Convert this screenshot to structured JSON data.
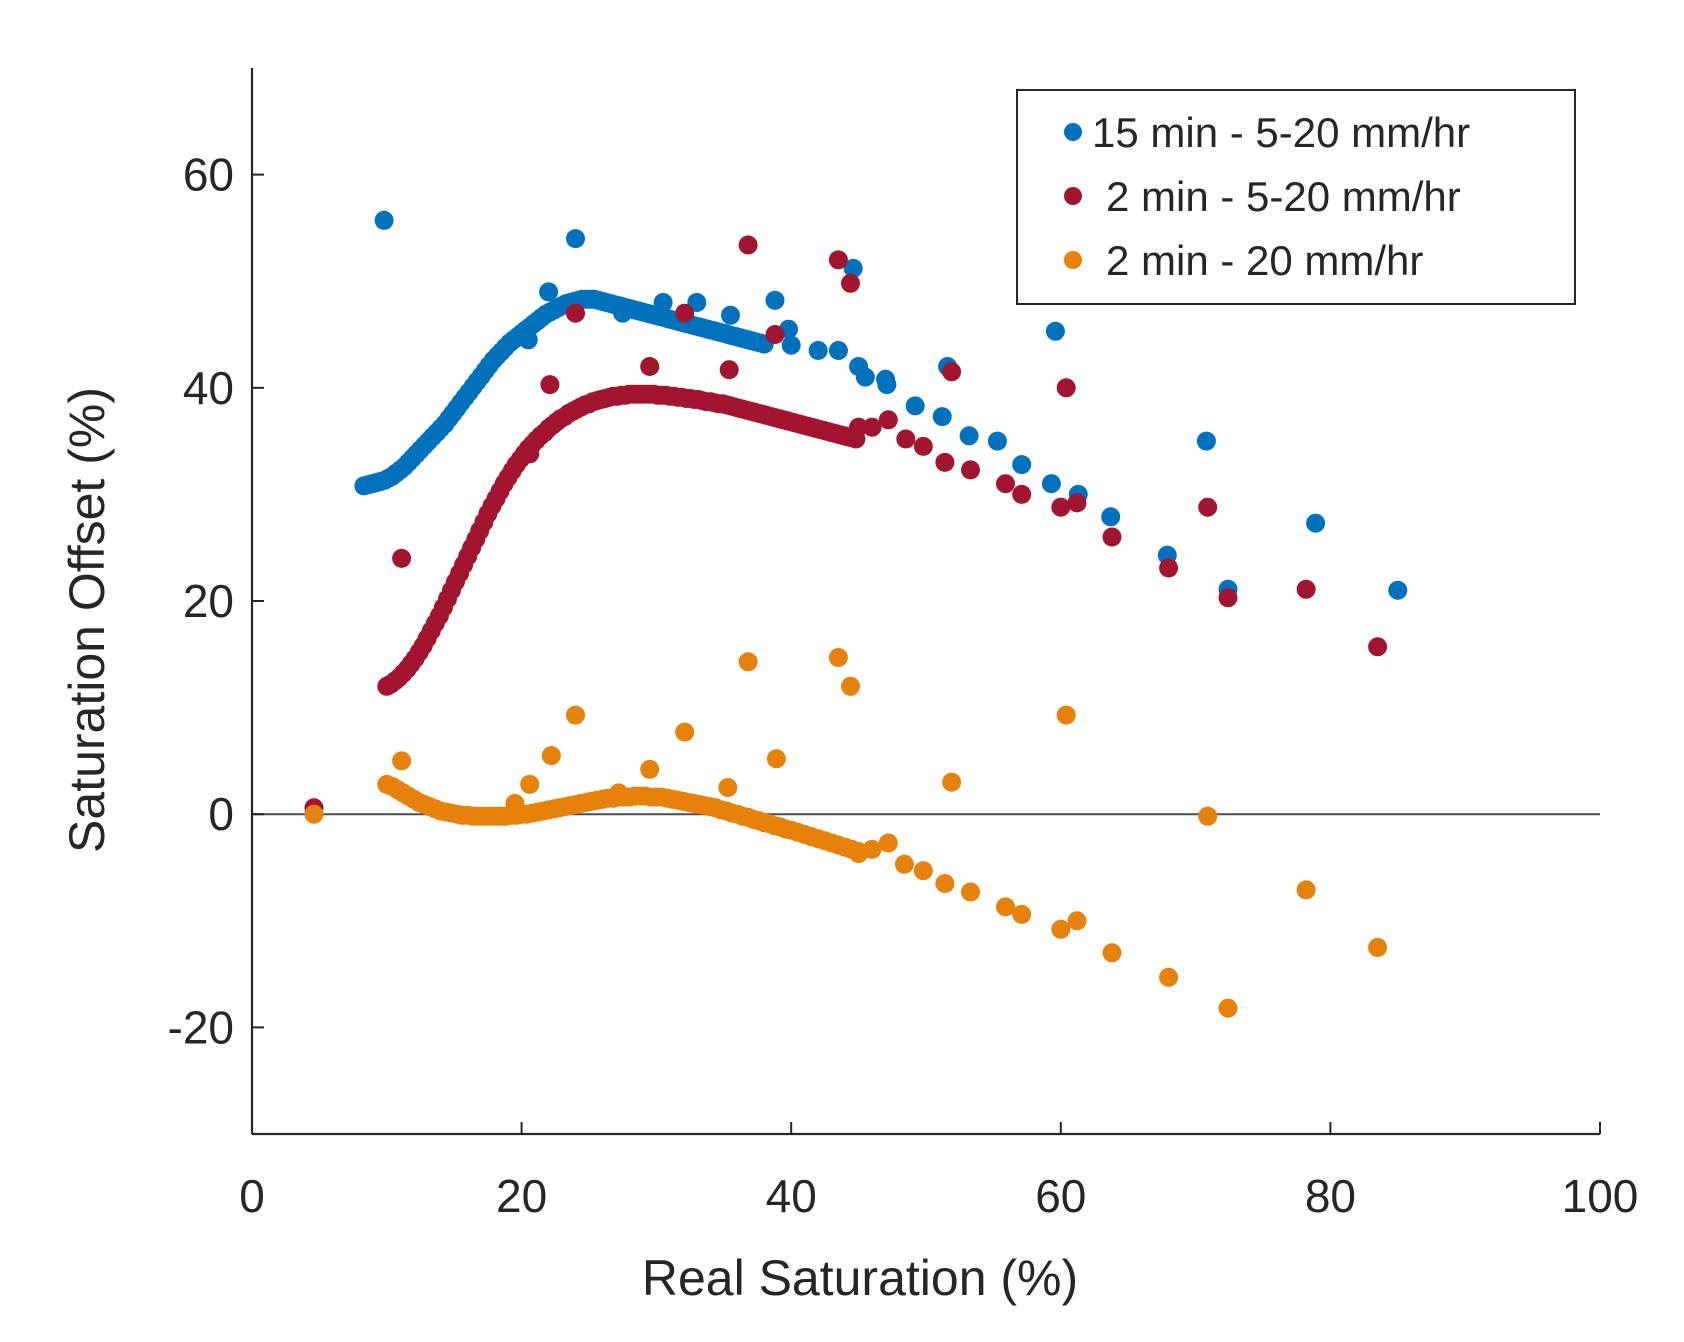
{
  "chart_data": {
    "type": "scatter",
    "title": "",
    "xlabel": "Real Saturation (%)",
    "ylabel": "Saturation Offset (%)",
    "xlim": [
      0,
      100
    ],
    "ylim": [
      -30,
      70
    ],
    "xticks": [
      "0",
      "20",
      "40",
      "60",
      "80",
      "100"
    ],
    "yticks": [
      "-20",
      "0",
      "20",
      "40",
      "60"
    ],
    "xtick_values": [
      0,
      20,
      40,
      60,
      80,
      100
    ],
    "ytick_values": [
      -20,
      0,
      20,
      40,
      60
    ],
    "reference_line_y": 0,
    "grid": false,
    "legend_position": "top-right",
    "series": [
      {
        "name": "15 min - 5-20 mm/hr",
        "color": "#0072BD",
        "x": [
          8.3,
          8.6,
          8.9,
          9.2,
          9.5,
          9.8,
          10.1,
          10.4,
          10.7,
          11.0,
          11.3,
          11.6,
          11.9,
          12.2,
          12.5,
          12.8,
          13.1,
          13.4,
          13.7,
          14.0,
          14.3,
          14.6,
          14.9,
          15.2,
          15.5,
          15.8,
          16.1,
          16.4,
          16.7,
          17.0,
          17.3,
          17.6,
          17.9,
          18.2,
          18.5,
          18.8,
          19.1,
          19.4,
          19.7,
          20.0,
          20.3,
          20.6,
          20.9,
          21.2,
          21.5,
          21.8,
          22.1,
          22.4,
          22.7,
          23.0,
          23.3,
          23.6,
          23.9,
          24.2,
          24.5,
          24.8,
          25.1,
          25.4,
          25.7,
          26.0,
          26.3,
          26.6,
          26.9,
          27.2,
          27.5,
          27.8,
          28.1,
          28.4,
          28.7,
          29.0,
          29.3,
          29.6,
          29.9,
          30.2,
          30.5,
          30.8,
          31.1,
          31.4,
          31.7,
          32.0,
          32.3,
          32.6,
          32.9,
          33.2,
          33.5,
          33.8,
          34.1,
          34.4,
          34.7,
          35.0,
          35.3,
          35.6,
          35.9,
          36.2,
          36.5,
          36.8,
          37.1,
          37.4,
          37.7,
          38.0,
          9.8,
          24.0,
          22.0,
          20.5,
          27.5,
          30.5,
          33.0,
          35.5,
          38.8,
          39.8,
          40.0,
          42.0,
          43.5,
          44.6,
          45.0,
          45.5,
          47.0,
          47.1,
          49.2,
          51.2,
          51.6,
          53.2,
          55.3,
          57.1,
          59.3,
          59.6,
          61.3,
          63.7,
          67.9,
          70.8,
          72.4,
          78.9,
          85.0
        ],
        "y": [
          30.8,
          30.9,
          31.0,
          31.1,
          31.2,
          31.3,
          31.5,
          31.7,
          32.0,
          32.3,
          32.6,
          33.0,
          33.4,
          33.8,
          34.2,
          34.6,
          35.0,
          35.4,
          35.8,
          36.2,
          36.6,
          37.1,
          37.6,
          38.1,
          38.6,
          39.1,
          39.6,
          40.1,
          40.6,
          41.1,
          41.6,
          42.1,
          42.6,
          43.0,
          43.4,
          43.8,
          44.2,
          44.5,
          44.8,
          45.1,
          45.4,
          45.7,
          46.0,
          46.3,
          46.6,
          46.9,
          47.1,
          47.3,
          47.5,
          47.7,
          47.9,
          48.0,
          48.1,
          48.2,
          48.3,
          48.3,
          48.3,
          48.3,
          48.2,
          48.1,
          48.0,
          47.9,
          47.8,
          47.7,
          47.6,
          47.5,
          47.4,
          47.3,
          47.2,
          47.1,
          47.0,
          46.9,
          46.8,
          46.7,
          46.6,
          46.5,
          46.4,
          46.3,
          46.2,
          46.1,
          46.0,
          45.9,
          45.8,
          45.7,
          45.6,
          45.5,
          45.4,
          45.3,
          45.2,
          45.1,
          45.0,
          44.9,
          44.8,
          44.7,
          44.6,
          44.5,
          44.4,
          44.3,
          44.2,
          44.1,
          55.7,
          54.0,
          49.0,
          44.5,
          47.0,
          48.0,
          48.0,
          46.8,
          48.2,
          45.5,
          44.0,
          43.5,
          43.5,
          51.2,
          42.0,
          41.0,
          40.8,
          40.3,
          38.3,
          37.3,
          42.0,
          35.5,
          35.0,
          32.8,
          31.0,
          45.3,
          30.0,
          27.9,
          24.3,
          35.0,
          21.1,
          27.3,
          21.0
        ]
      },
      {
        "name": "2 min - 5-20 mm/hr",
        "color": "#A2142F",
        "x": [
          10.0,
          10.3,
          10.6,
          10.9,
          11.2,
          11.5,
          11.8,
          12.1,
          12.4,
          12.7,
          13.0,
          13.3,
          13.6,
          13.9,
          14.2,
          14.5,
          14.8,
          15.1,
          15.4,
          15.7,
          16.0,
          16.3,
          16.6,
          16.9,
          17.2,
          17.5,
          17.8,
          18.1,
          18.4,
          18.7,
          19.0,
          19.3,
          19.6,
          19.9,
          20.2,
          20.5,
          20.8,
          21.1,
          21.4,
          21.7,
          22.0,
          22.3,
          22.6,
          22.9,
          23.2,
          23.5,
          23.8,
          24.1,
          24.4,
          24.7,
          25.0,
          25.3,
          25.6,
          25.9,
          26.2,
          26.5,
          26.8,
          27.1,
          27.4,
          27.7,
          28.0,
          28.3,
          28.6,
          28.9,
          29.2,
          29.5,
          29.8,
          30.1,
          30.4,
          30.7,
          31.0,
          31.3,
          31.6,
          31.9,
          32.2,
          32.5,
          32.8,
          33.1,
          33.4,
          33.7,
          34.0,
          34.3,
          34.6,
          34.9,
          35.2,
          35.5,
          35.8,
          36.1,
          36.4,
          36.7,
          37.0,
          37.3,
          37.6,
          37.9,
          38.2,
          38.5,
          38.8,
          39.1,
          39.4,
          39.7,
          40.0,
          40.3,
          40.6,
          40.9,
          41.2,
          41.5,
          41.8,
          42.1,
          42.4,
          42.7,
          43.0,
          43.3,
          43.6,
          43.9,
          44.2,
          44.5,
          44.8,
          4.6,
          11.1,
          20.6,
          22.1,
          24.0,
          29.5,
          32.1,
          35.4,
          36.8,
          38.8,
          43.5,
          44.4,
          45.0,
          46.0,
          47.2,
          48.5,
          49.8,
          51.4,
          51.9,
          53.3,
          55.9,
          57.1,
          60.0,
          60.4,
          61.2,
          63.8,
          68.0,
          70.9,
          72.4,
          78.2,
          83.5
        ],
        "y": [
          12.0,
          12.2,
          12.5,
          12.8,
          13.2,
          13.6,
          14.1,
          14.6,
          15.2,
          15.8,
          16.5,
          17.2,
          17.9,
          18.6,
          19.4,
          20.2,
          21.0,
          21.8,
          22.6,
          23.4,
          24.2,
          25.0,
          25.8,
          26.6,
          27.4,
          28.2,
          28.9,
          29.6,
          30.3,
          31.0,
          31.6,
          32.2,
          32.8,
          33.3,
          33.8,
          34.3,
          34.7,
          35.1,
          35.5,
          35.8,
          36.2,
          36.5,
          36.8,
          37.1,
          37.3,
          37.6,
          37.8,
          38.0,
          38.2,
          38.4,
          38.5,
          38.7,
          38.8,
          38.9,
          39.0,
          39.1,
          39.2,
          39.2,
          39.3,
          39.3,
          39.4,
          39.4,
          39.4,
          39.4,
          39.4,
          39.4,
          39.4,
          39.3,
          39.3,
          39.3,
          39.2,
          39.2,
          39.1,
          39.1,
          39.0,
          39.0,
          38.9,
          38.9,
          38.8,
          38.7,
          38.7,
          38.6,
          38.5,
          38.5,
          38.4,
          38.3,
          38.2,
          38.1,
          38.0,
          37.9,
          37.8,
          37.7,
          37.6,
          37.5,
          37.4,
          37.3,
          37.2,
          37.1,
          37.0,
          36.9,
          36.8,
          36.7,
          36.6,
          36.5,
          36.4,
          36.3,
          36.2,
          36.1,
          36.0,
          35.9,
          35.8,
          35.7,
          35.6,
          35.5,
          35.4,
          35.3,
          35.2,
          0.6,
          24.0,
          33.8,
          40.3,
          47.0,
          42.0,
          47.0,
          41.7,
          53.4,
          45.0,
          52.0,
          49.8,
          36.3,
          36.3,
          37.0,
          35.2,
          34.5,
          33.0,
          41.5,
          32.3,
          31.0,
          30.0,
          28.8,
          40.0,
          29.2,
          26.0,
          23.1,
          28.8,
          20.3,
          21.1,
          15.7
        ]
      },
      {
        "name": "2 min - 20 mm/hr",
        "color": "#D95319",
        "display_color": "#E6810A",
        "x": [
          10.0,
          10.4,
          10.8,
          11.2,
          11.6,
          12.0,
          12.4,
          12.8,
          13.2,
          13.6,
          14.0,
          14.4,
          14.8,
          15.2,
          15.6,
          16.0,
          16.4,
          16.8,
          17.2,
          17.6,
          18.0,
          18.4,
          18.8,
          19.2,
          19.6,
          20.0,
          20.4,
          20.8,
          21.2,
          21.6,
          22.0,
          22.4,
          22.8,
          23.2,
          23.6,
          24.0,
          24.4,
          24.8,
          25.2,
          25.6,
          26.0,
          26.4,
          26.8,
          27.2,
          27.6,
          28.0,
          28.4,
          28.8,
          29.2,
          29.6,
          30.0,
          30.4,
          30.8,
          31.2,
          31.6,
          32.0,
          32.4,
          32.8,
          33.2,
          33.6,
          34.0,
          34.4,
          34.8,
          35.2,
          35.6,
          36.0,
          36.4,
          36.8,
          37.2,
          37.6,
          38.0,
          38.4,
          38.8,
          39.2,
          39.6,
          40.0,
          40.5,
          41.0,
          41.5,
          42.0,
          42.5,
          43.0,
          43.5,
          44.0,
          44.5,
          45.0,
          4.6,
          11.1,
          19.5,
          20.6,
          22.2,
          24.0,
          27.2,
          29.5,
          32.1,
          35.3,
          36.8,
          38.9,
          43.5,
          44.4,
          45.0,
          46.0,
          47.2,
          48.4,
          49.8,
          51.4,
          51.9,
          53.3,
          55.9,
          57.1,
          60.0,
          60.4,
          61.2,
          63.8,
          68.0,
          70.9,
          72.4,
          78.2,
          83.5
        ],
        "y": [
          2.8,
          2.6,
          2.3,
          2.0,
          1.7,
          1.4,
          1.1,
          0.9,
          0.7,
          0.5,
          0.3,
          0.2,
          0.1,
          0.0,
          -0.1,
          -0.1,
          -0.2,
          -0.2,
          -0.2,
          -0.2,
          -0.2,
          -0.2,
          -0.2,
          -0.1,
          -0.1,
          0.0,
          0.0,
          0.1,
          0.2,
          0.3,
          0.4,
          0.5,
          0.6,
          0.7,
          0.8,
          0.9,
          1.0,
          1.1,
          1.2,
          1.3,
          1.4,
          1.5,
          1.5,
          1.6,
          1.6,
          1.6,
          1.7,
          1.7,
          1.7,
          1.6,
          1.6,
          1.6,
          1.5,
          1.4,
          1.3,
          1.2,
          1.1,
          1.0,
          0.9,
          0.8,
          0.7,
          0.6,
          0.4,
          0.3,
          0.1,
          0.0,
          -0.2,
          -0.3,
          -0.5,
          -0.6,
          -0.8,
          -0.9,
          -1.1,
          -1.2,
          -1.4,
          -1.5,
          -1.7,
          -1.9,
          -2.1,
          -2.3,
          -2.5,
          -2.7,
          -2.9,
          -3.1,
          -3.3,
          -3.5,
          0.0,
          5.0,
          1.0,
          2.8,
          5.5,
          9.3,
          2.0,
          4.2,
          7.7,
          2.5,
          14.3,
          5.2,
          14.7,
          12.0,
          -3.7,
          -3.3,
          -2.7,
          -4.7,
          -5.3,
          -6.5,
          3.0,
          -7.3,
          -8.7,
          -9.4,
          -10.8,
          9.3,
          -10.0,
          -13.0,
          -15.3,
          -0.2,
          -18.2,
          -7.1,
          -12.5
        ]
      }
    ]
  }
}
